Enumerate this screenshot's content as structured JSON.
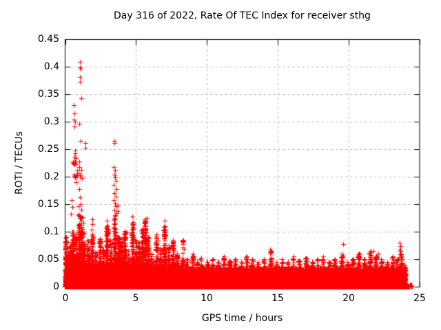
{
  "title": "Day 316 of 2022, Rate Of TEC Index for receiver sthg",
  "colors": {
    "marker": "#ff0000",
    "grid": "#b0b0b0",
    "axis": "#000000",
    "background": "#ffffff"
  },
  "chart_data": {
    "type": "scatter",
    "title": "Day 316 of 2022, Rate Of TEC Index for receiver sthg",
    "xlabel": "GPS time / hours",
    "ylabel": "ROTI / TECUs",
    "xlim": [
      0,
      25
    ],
    "ylim": [
      0,
      0.45
    ],
    "xticks": [
      0,
      5,
      10,
      15,
      20,
      25
    ],
    "xtick_labels": [
      "0",
      "5",
      "10",
      "15",
      "20",
      "25"
    ],
    "yticks": [
      0,
      0.05,
      0.1,
      0.15,
      0.2,
      0.25,
      0.3,
      0.35,
      0.4,
      0.45
    ],
    "ytick_labels": [
      "0",
      "0.05",
      "0.1",
      "0.15",
      "0.2",
      "0.25",
      "0.3",
      "0.35",
      "0.4",
      "0.45"
    ],
    "grid": "dashed",
    "legend": "none",
    "marker": "+",
    "marker_color": "#ff0000",
    "seed": 316,
    "outlier_points": [
      [
        1.05,
        0.409
      ],
      [
        1.03,
        0.399
      ],
      [
        1.08,
        0.396
      ],
      [
        1.04,
        0.381
      ],
      [
        1.06,
        0.373
      ],
      [
        1.12,
        0.342
      ],
      [
        0.62,
        0.33
      ],
      [
        0.64,
        0.315
      ],
      [
        0.6,
        0.304
      ],
      [
        0.7,
        0.3
      ],
      [
        1.0,
        0.296
      ],
      [
        0.68,
        0.291
      ],
      [
        1.07,
        0.265
      ],
      [
        1.41,
        0.261
      ],
      [
        1.44,
        0.252
      ],
      [
        0.7,
        0.248
      ],
      [
        0.71,
        0.242
      ],
      [
        0.68,
        0.236
      ],
      [
        0.73,
        0.234
      ],
      [
        0.55,
        0.225
      ],
      [
        0.58,
        0.227
      ],
      [
        0.61,
        0.224
      ],
      [
        0.64,
        0.226
      ],
      [
        0.67,
        0.223
      ],
      [
        0.7,
        0.228
      ],
      [
        0.74,
        0.222
      ],
      [
        1.0,
        0.228
      ],
      [
        1.0,
        0.218
      ],
      [
        0.85,
        0.211
      ],
      [
        1.12,
        0.212
      ],
      [
        0.62,
        0.204
      ],
      [
        0.66,
        0.201
      ],
      [
        0.7,
        0.199
      ],
      [
        0.74,
        0.203
      ],
      [
        0.78,
        0.2
      ],
      [
        0.85,
        0.202
      ],
      [
        0.95,
        0.206
      ],
      [
        1.05,
        0.2
      ],
      [
        1.1,
        0.204
      ],
      [
        1.21,
        0.198
      ],
      [
        0.77,
        0.19
      ],
      [
        1.0,
        0.178
      ],
      [
        1.05,
        0.163
      ],
      [
        0.48,
        0.157
      ],
      [
        1.1,
        0.15
      ],
      [
        0.97,
        0.146
      ],
      [
        0.52,
        0.145
      ],
      [
        1.15,
        0.14
      ],
      [
        0.42,
        0.132
      ],
      [
        0.91,
        0.131
      ],
      [
        1.22,
        0.126
      ],
      [
        1.3,
        0.116
      ],
      [
        0.88,
        0.111
      ],
      [
        1.25,
        0.105
      ],
      [
        1.35,
        0.098
      ],
      [
        1.9,
        0.122
      ],
      [
        1.92,
        0.114
      ],
      [
        1.88,
        0.104
      ],
      [
        2.95,
        0.12
      ],
      [
        2.98,
        0.111
      ],
      [
        3.05,
        0.102
      ],
      [
        3.45,
        0.265
      ],
      [
        3.47,
        0.261
      ],
      [
        3.43,
        0.217
      ],
      [
        3.5,
        0.211
      ],
      [
        3.47,
        0.204
      ],
      [
        3.52,
        0.199
      ],
      [
        3.55,
        0.192
      ],
      [
        3.44,
        0.185
      ],
      [
        3.6,
        0.177
      ],
      [
        3.48,
        0.17
      ],
      [
        3.56,
        0.164
      ],
      [
        3.42,
        0.157
      ],
      [
        3.5,
        0.151
      ],
      [
        3.58,
        0.146
      ],
      [
        3.46,
        0.139
      ],
      [
        3.62,
        0.134
      ],
      [
        3.54,
        0.129
      ],
      [
        3.7,
        0.148
      ],
      [
        3.72,
        0.138
      ],
      [
        4.2,
        0.101
      ],
      [
        4.75,
        0.128
      ],
      [
        4.78,
        0.118
      ],
      [
        4.82,
        0.108
      ],
      [
        5.75,
        0.125
      ],
      [
        5.6,
        0.122
      ],
      [
        5.55,
        0.115
      ],
      [
        5.68,
        0.112
      ],
      [
        7.0,
        0.12
      ],
      [
        7.02,
        0.11
      ],
      [
        9.6,
        0.053
      ],
      [
        14.45,
        0.068
      ],
      [
        14.47,
        0.062
      ],
      [
        19.6,
        0.078
      ],
      [
        19.6,
        0.056
      ],
      [
        21.75,
        0.065
      ],
      [
        22.1,
        0.06
      ],
      [
        23.6,
        0.08
      ],
      [
        23.62,
        0.074
      ],
      [
        23.58,
        0.068
      ],
      [
        23.64,
        0.065
      ],
      [
        23.61,
        0.06
      ]
    ],
    "envelope_peaks": [
      [
        0.05,
        0.09
      ],
      [
        0.15,
        0.065
      ],
      [
        0.35,
        0.075
      ],
      [
        0.55,
        0.1
      ],
      [
        0.75,
        0.095
      ],
      [
        1.0,
        0.13
      ],
      [
        1.15,
        0.12
      ],
      [
        1.35,
        0.08
      ],
      [
        1.6,
        0.085
      ],
      [
        1.9,
        0.095
      ],
      [
        2.15,
        0.062
      ],
      [
        2.45,
        0.088
      ],
      [
        2.7,
        0.068
      ],
      [
        2.95,
        0.11
      ],
      [
        3.2,
        0.085
      ],
      [
        3.5,
        0.13
      ],
      [
        3.75,
        0.09
      ],
      [
        3.95,
        0.082
      ],
      [
        4.2,
        0.1
      ],
      [
        4.45,
        0.065
      ],
      [
        4.75,
        0.115
      ],
      [
        5.0,
        0.085
      ],
      [
        5.2,
        0.08
      ],
      [
        5.45,
        0.105
      ],
      [
        5.65,
        0.12
      ],
      [
        5.85,
        0.09
      ],
      [
        6.1,
        0.06
      ],
      [
        6.45,
        0.095
      ],
      [
        6.7,
        0.07
      ],
      [
        7.0,
        0.11
      ],
      [
        7.3,
        0.075
      ],
      [
        7.6,
        0.085
      ],
      [
        7.9,
        0.06
      ],
      [
        8.3,
        0.085
      ],
      [
        8.6,
        0.05
      ],
      [
        9.0,
        0.06
      ],
      [
        9.3,
        0.045
      ],
      [
        9.6,
        0.052
      ],
      [
        10.0,
        0.045
      ],
      [
        10.4,
        0.05
      ],
      [
        10.8,
        0.045
      ],
      [
        11.2,
        0.055
      ],
      [
        11.6,
        0.048
      ],
      [
        12.0,
        0.05
      ],
      [
        12.4,
        0.045
      ],
      [
        12.8,
        0.055
      ],
      [
        13.2,
        0.05
      ],
      [
        13.6,
        0.045
      ],
      [
        14.0,
        0.05
      ],
      [
        14.5,
        0.065
      ],
      [
        14.9,
        0.045
      ],
      [
        15.3,
        0.05
      ],
      [
        15.7,
        0.045
      ],
      [
        16.1,
        0.055
      ],
      [
        16.5,
        0.048
      ],
      [
        17.0,
        0.052
      ],
      [
        17.4,
        0.045
      ],
      [
        17.8,
        0.05
      ],
      [
        18.2,
        0.055
      ],
      [
        18.6,
        0.045
      ],
      [
        19.0,
        0.05
      ],
      [
        19.5,
        0.06
      ],
      [
        19.9,
        0.045
      ],
      [
        20.3,
        0.05
      ],
      [
        20.7,
        0.06
      ],
      [
        21.1,
        0.05
      ],
      [
        21.5,
        0.065
      ],
      [
        21.9,
        0.055
      ],
      [
        22.3,
        0.05
      ],
      [
        22.7,
        0.045
      ],
      [
        23.1,
        0.055
      ],
      [
        23.4,
        0.05
      ],
      [
        23.7,
        0.06
      ],
      [
        23.95,
        0.04
      ]
    ],
    "density_band": [
      [
        0.0,
        1.0,
        800,
        0.055
      ],
      [
        1.0,
        8.0,
        5200,
        0.042
      ],
      [
        8.0,
        24.0,
        11800,
        0.034
      ],
      [
        24.0,
        24.5,
        30,
        0.004
      ]
    ]
  }
}
